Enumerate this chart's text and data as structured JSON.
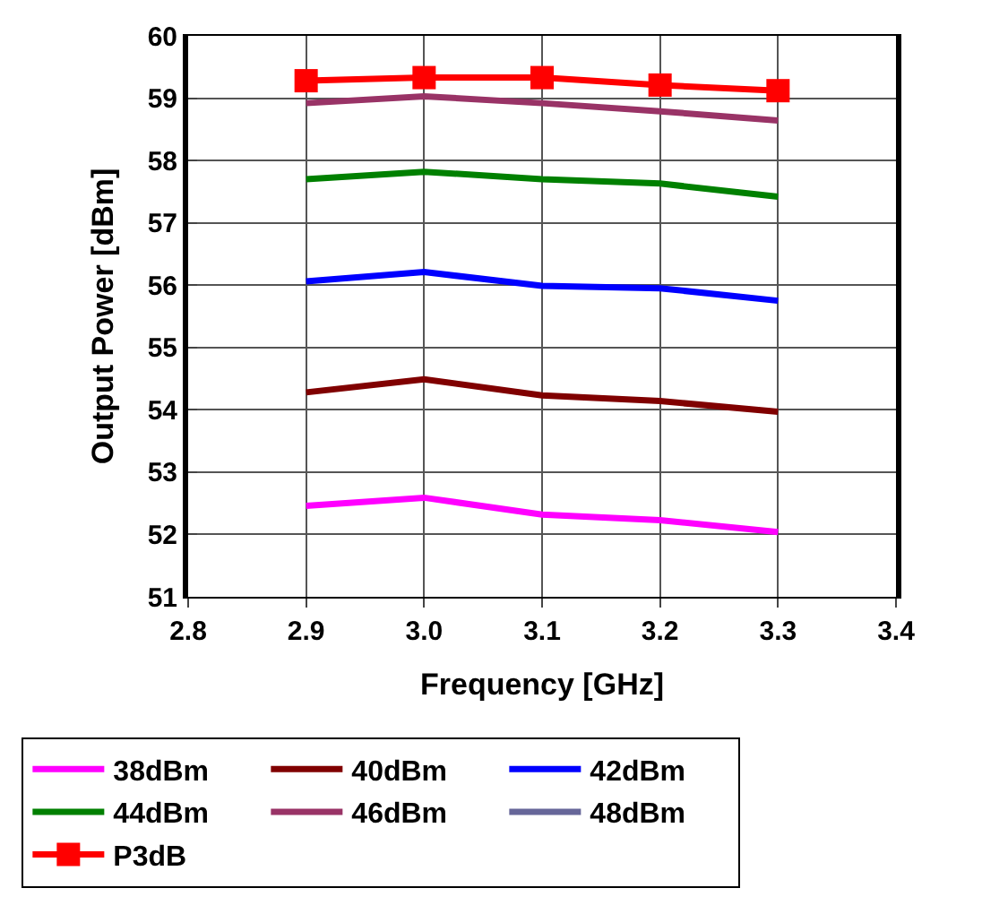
{
  "chart_data": {
    "type": "line",
    "xlabel": "Frequency [GHz]",
    "ylabel": "Output Power [dBm]",
    "x": [
      2.9,
      3.0,
      3.1,
      3.2,
      3.3
    ],
    "series": [
      {
        "name": "38dBm",
        "color": "#ff00ff",
        "values": [
          52.46,
          52.59,
          52.32,
          52.23,
          52.04
        ]
      },
      {
        "name": "40dBm",
        "color": "#800000",
        "values": [
          54.28,
          54.49,
          54.23,
          54.14,
          53.97
        ]
      },
      {
        "name": "42dBm",
        "color": "#0000ff",
        "values": [
          56.06,
          56.21,
          55.99,
          55.95,
          55.75
        ]
      },
      {
        "name": "44dBm",
        "color": "#008000",
        "values": [
          57.7,
          57.82,
          57.7,
          57.63,
          57.42
        ]
      },
      {
        "name": "46dBm",
        "color": "#993366",
        "values": [
          58.92,
          59.03,
          58.92,
          58.79,
          58.64
        ]
      },
      {
        "name": "48dBm",
        "color": "#666699",
        "values": [
          null,
          null,
          null,
          null,
          null
        ]
      },
      {
        "name": "P3dB",
        "color": "#ff0000",
        "values": [
          59.28,
          59.33,
          59.33,
          59.21,
          59.12
        ],
        "marker": "square"
      }
    ],
    "xlim": [
      2.8,
      3.4
    ],
    "xticks": [
      2.8,
      2.9,
      {
        "value": 3,
        "label": "3.0"
      },
      3.1,
      3.2,
      3.3,
      3.4
    ],
    "ylim": [
      51,
      60
    ],
    "yticks": [
      51,
      52,
      53,
      54,
      55,
      56,
      57,
      58,
      59,
      60
    ],
    "grid": true,
    "legend": "bottom"
  }
}
